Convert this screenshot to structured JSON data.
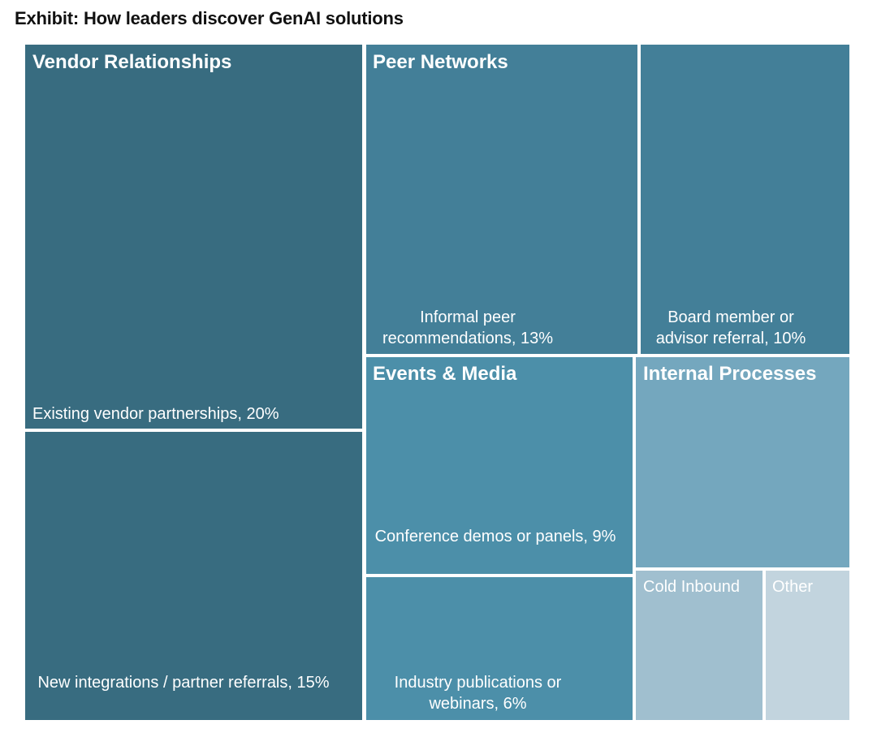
{
  "title": "Exhibit: How leaders discover GenAI solutions",
  "colors": {
    "vendor": "#386c80",
    "peer": "#437f98",
    "events": "#4c8fa9",
    "internal": "#74a7be",
    "cold": "#a0bfcf",
    "other": "#c2d4de",
    "divider": "#ffffff"
  },
  "chart_data": {
    "type": "treemap",
    "title": "Exhibit: How leaders discover GenAI solutions",
    "groups": [
      {
        "name": "Vendor Relationships",
        "children": [
          {
            "label": "Existing vendor partnerships, 20%",
            "value": 20
          },
          {
            "label": "New integrations / partner referrals, 15%",
            "value": 15
          }
        ]
      },
      {
        "name": "Peer Networks",
        "children": [
          {
            "label": "Informal peer recommendations, 13%",
            "value": 13
          },
          {
            "label": "Board member or advisor referral, 10%",
            "value": 10
          }
        ]
      },
      {
        "name": "Events & Media",
        "children": [
          {
            "label": "Conference demos or panels, 9%",
            "value": 9
          },
          {
            "label": "Industry publications or webinars, 6%",
            "value": 6
          }
        ]
      },
      {
        "name": "Internal Processes",
        "children": [
          {
            "label": "",
            "value": null
          }
        ]
      },
      {
        "name": "",
        "children": [
          {
            "label": "Cold Inbound",
            "value": null
          },
          {
            "label": "Other",
            "value": null
          }
        ]
      }
    ]
  }
}
